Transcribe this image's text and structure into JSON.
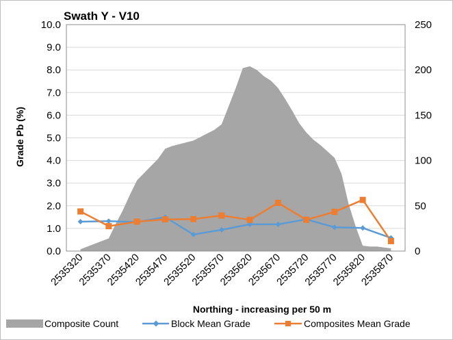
{
  "chart_data": {
    "type": "area+line",
    "title": "Swath Y - V10",
    "xlabel": "Northing - increasing per 50 m",
    "ylabel": "Grade Pb (%)",
    "ylim": [
      0,
      10
    ],
    "y_ticks": [
      "0.0",
      "1.0",
      "2.0",
      "3.0",
      "4.0",
      "5.0",
      "6.0",
      "7.0",
      "8.0",
      "9.0",
      "10.0"
    ],
    "y2lim": [
      0,
      250
    ],
    "y2_ticks": [
      "0",
      "50",
      "100",
      "150",
      "200",
      "250"
    ],
    "categories": [
      "2535320",
      "2535370",
      "2535420",
      "2535470",
      "2535520",
      "2535570",
      "2535620",
      "2535670",
      "2535720",
      "2535770",
      "2535820",
      "2535870"
    ],
    "x_tick_labels": [
      "2535320",
      "2535370",
      "2535420",
      "2535470",
      "2535520",
      "2535570",
      "2535620",
      "2535670",
      "2535720",
      "2535770",
      "2535820",
      "2535870"
    ],
    "area": {
      "name": "Composite Count",
      "axis": "secondary",
      "color": "#a6a6a6",
      "x": [
        0,
        0.25,
        0.5,
        0.75,
        1,
        1.25,
        1.5,
        1.75,
        2,
        2.25,
        2.5,
        2.75,
        3,
        3.25,
        3.5,
        3.75,
        4,
        4.25,
        4.5,
        4.75,
        5,
        5.25,
        5.5,
        5.75,
        6,
        6.25,
        6.5,
        6.75,
        7,
        7.25,
        7.5,
        7.75,
        8,
        8.25,
        8.5,
        8.75,
        9,
        9.25,
        9.5,
        9.75,
        10,
        10.25,
        10.5,
        10.75,
        11
      ],
      "values": [
        2,
        5,
        8,
        11,
        14,
        30,
        45,
        62,
        78,
        86,
        94,
        102,
        113,
        116,
        118,
        120,
        122,
        126,
        130,
        134,
        140,
        160,
        180,
        202,
        204,
        200,
        193,
        188,
        180,
        168,
        155,
        141,
        131,
        123,
        117,
        110,
        103,
        85,
        52,
        27,
        6,
        5,
        5,
        4,
        3
      ]
    },
    "series": [
      {
        "name": "Block Mean Grade",
        "axis": "primary",
        "color": "#5b9bd5",
        "marker": "diamond",
        "values": [
          1.3,
          1.32,
          1.28,
          1.5,
          0.73,
          0.94,
          1.18,
          1.18,
          1.4,
          1.05,
          1.02,
          0.58
        ]
      },
      {
        "name": "Composites Mean Grade",
        "axis": "primary",
        "color": "#ed7d31",
        "marker": "square",
        "values": [
          1.75,
          1.1,
          1.3,
          1.4,
          1.41,
          1.57,
          1.38,
          2.13,
          1.38,
          1.73,
          2.26,
          0.44
        ]
      }
    ],
    "legend": [
      "Composite Count",
      "Block Mean Grade",
      "Composites Mean Grade"
    ],
    "legend_position": "bottom",
    "grid": true
  }
}
